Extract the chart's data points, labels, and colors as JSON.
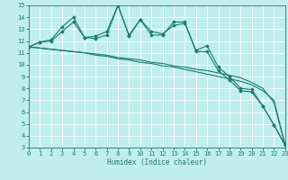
{
  "x": [
    0,
    1,
    2,
    3,
    4,
    5,
    6,
    7,
    8,
    9,
    10,
    11,
    12,
    13,
    14,
    15,
    16,
    17,
    18,
    19,
    20,
    21,
    22,
    23
  ],
  "line_jagged1": [
    11.5,
    11.9,
    12.0,
    12.8,
    13.6,
    12.3,
    12.2,
    12.5,
    15.0,
    12.5,
    13.8,
    12.5,
    12.5,
    13.6,
    13.6,
    11.1,
    11.1,
    9.5,
    8.7,
    7.8,
    7.7,
    6.5,
    4.9,
    3.2
  ],
  "line_jagged2": [
    11.5,
    11.9,
    12.1,
    13.2,
    14.0,
    12.3,
    12.4,
    12.8,
    15.0,
    12.4,
    13.8,
    12.8,
    12.6,
    13.3,
    13.5,
    11.2,
    11.6,
    9.8,
    9.0,
    8.0,
    7.9,
    6.5,
    4.9,
    3.2
  ],
  "line_diag1": [
    11.5,
    11.4,
    11.3,
    11.2,
    11.1,
    11.0,
    10.8,
    10.7,
    10.5,
    10.4,
    10.2,
    10.1,
    9.9,
    9.8,
    9.6,
    9.4,
    9.2,
    9.0,
    8.8,
    8.6,
    8.3,
    7.8,
    7.0,
    3.2
  ],
  "line_diag2": [
    11.5,
    11.4,
    11.3,
    11.2,
    11.1,
    11.0,
    10.9,
    10.8,
    10.6,
    10.5,
    10.4,
    10.2,
    10.1,
    9.9,
    9.8,
    9.6,
    9.5,
    9.3,
    9.1,
    8.9,
    8.5,
    8.0,
    6.8,
    3.2
  ],
  "color": "#1a7a6e",
  "bg_color": "#c0eded",
  "grid_color": "#ffffff",
  "xlim": [
    0,
    23
  ],
  "ylim": [
    3,
    15
  ],
  "yticks": [
    3,
    4,
    5,
    6,
    7,
    8,
    9,
    10,
    11,
    12,
    13,
    14,
    15
  ],
  "xticks": [
    0,
    1,
    2,
    3,
    4,
    5,
    6,
    7,
    8,
    9,
    10,
    11,
    12,
    13,
    14,
    15,
    16,
    17,
    18,
    19,
    20,
    21,
    22,
    23
  ],
  "xlabel": "Humidex (Indice chaleur)",
  "marker": "D",
  "marker_size": 1.8,
  "linewidth": 0.8
}
